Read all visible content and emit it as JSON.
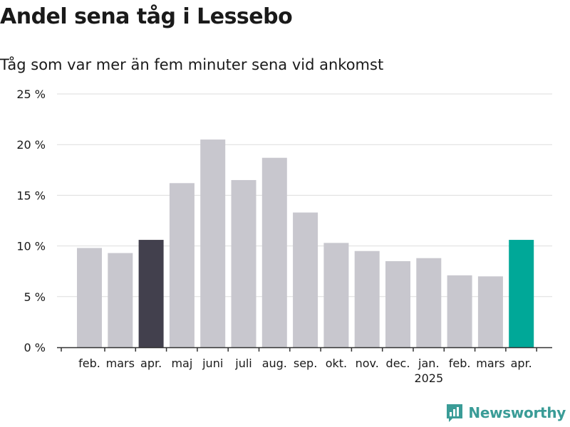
{
  "title": "Andel sena tåg i Lessebo",
  "subtitle": "Tåg som var mer än fem minuter sena vid ankomst",
  "brand": "Newsworthy",
  "colors": {
    "bar": "#c8c7ce",
    "highlight_first": "#42404d",
    "highlight_last": "#00a898",
    "grid": "#dddddd",
    "axis": "#333333",
    "text": "#1a1a1a",
    "brand": "#3a9c97"
  },
  "chart_data": {
    "type": "bar",
    "categories": [
      "feb.",
      "mars",
      "apr.",
      "maj",
      "juni",
      "juli",
      "aug.",
      "sep.",
      "okt.",
      "nov.",
      "dec.",
      "jan.",
      "feb.",
      "mars",
      "apr."
    ],
    "category_sublabels": [
      "",
      "",
      "",
      "",
      "",
      "",
      "",
      "",
      "",
      "",
      "",
      "2025",
      "",
      "",
      ""
    ],
    "values": [
      9.8,
      9.3,
      10.6,
      16.2,
      20.5,
      16.5,
      18.7,
      13.3,
      10.3,
      9.5,
      8.5,
      8.8,
      7.1,
      7.0,
      10.6
    ],
    "highlight": {
      "2": "highlight_first",
      "14": "highlight_last"
    },
    "ylim": [
      0,
      25
    ],
    "yticks": [
      0,
      5,
      10,
      15,
      20,
      25
    ],
    "ytick_labels": [
      "0 %",
      "5 %",
      "10 %",
      "15 %",
      "20 %",
      "25 %"
    ],
    "grid": true,
    "xlabel": "",
    "ylabel": ""
  }
}
